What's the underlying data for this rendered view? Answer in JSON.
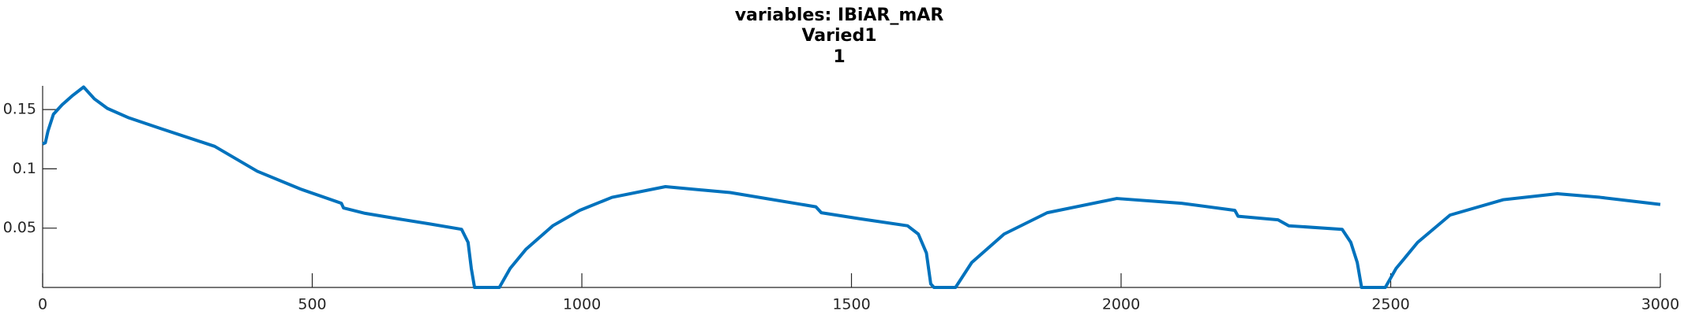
{
  "chart_data": {
    "type": "line",
    "title": "variables: IBiAR_mAR",
    "subtitle": "Varied1",
    "subtitle2": "1",
    "x": [
      0,
      5,
      10,
      20,
      36,
      56,
      76,
      96,
      120,
      160,
      219,
      319,
      398,
      478,
      554,
      558,
      598,
      657,
      717,
      777,
      789,
      795,
      801,
      847,
      867,
      896,
      946,
      996,
      1056,
      1155,
      1275,
      1434,
      1444,
      1514,
      1604,
      1624,
      1639,
      1647,
      1653,
      1693,
      1723,
      1783,
      1863,
      1992,
      2112,
      2211,
      2217,
      2291,
      2311,
      2410,
      2426,
      2438,
      2446,
      2490,
      2510,
      2550,
      2610,
      2709,
      2809,
      2888,
      3000
    ],
    "series": [
      {
        "name": "IBiAR_mAR",
        "color": "#0072bd",
        "values": [
          0.121,
          0.122,
          0.132,
          0.146,
          0.154,
          0.162,
          0.169,
          0.159,
          0.151,
          0.143,
          0.134,
          0.119,
          0.098,
          0.083,
          0.071,
          0.067,
          0.0625,
          0.058,
          0.0536,
          0.049,
          0.038,
          0.016,
          0,
          0,
          0.016,
          0.032,
          0.052,
          0.065,
          0.076,
          0.085,
          0.08,
          0.068,
          0.063,
          0.058,
          0.052,
          0.045,
          0.029,
          0.003,
          0,
          0,
          0.021,
          0.045,
          0.063,
          0.075,
          0.071,
          0.065,
          0.06,
          0.057,
          0.052,
          0.049,
          0.038,
          0.021,
          0,
          0,
          0.016,
          0.038,
          0.061,
          0.074,
          0.079,
          0.076,
          0.07
        ]
      }
    ],
    "xlim": [
      0,
      3000
    ],
    "xticks": [
      0,
      500,
      1000,
      1500,
      2000,
      2500,
      3000
    ],
    "ylim": [
      0,
      0.17
    ],
    "yticks": [
      0.05,
      0.1,
      0.15
    ]
  }
}
